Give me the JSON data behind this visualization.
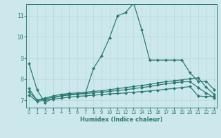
{
  "title": "",
  "xlabel": "Humidex (Indice chaleur)",
  "ylabel": "",
  "bg_color": "#cce8ec",
  "line_color": "#2d7a72",
  "grid_color": "#b8d8dc",
  "x_ticks": [
    0,
    1,
    2,
    3,
    4,
    5,
    6,
    7,
    8,
    9,
    10,
    11,
    12,
    13,
    14,
    15,
    16,
    17,
    18,
    19,
    20,
    21,
    22,
    23
  ],
  "y_ticks": [
    7,
    8,
    9,
    10,
    11
  ],
  "ylim": [
    6.65,
    11.55
  ],
  "xlim": [
    -0.3,
    23.3
  ],
  "series": [
    {
      "x": [
        0,
        1,
        2,
        3,
        4,
        5,
        6,
        7,
        8,
        9,
        10,
        11,
        12,
        13,
        14,
        15,
        16,
        17,
        18,
        19,
        20,
        21,
        22,
        23
      ],
      "y": [
        8.75,
        7.5,
        6.88,
        7.1,
        7.22,
        7.28,
        7.3,
        7.32,
        8.5,
        9.1,
        9.95,
        11.0,
        11.15,
        11.6,
        10.35,
        8.9,
        8.9,
        8.9,
        8.9,
        8.9,
        8.3,
        7.9,
        7.9,
        7.5
      ]
    },
    {
      "x": [
        0,
        1,
        2,
        3,
        4,
        5,
        6,
        7,
        8,
        9,
        10,
        11,
        12,
        13,
        14,
        15,
        16,
        17,
        18,
        19,
        20,
        21,
        22,
        23
      ],
      "y": [
        7.55,
        7.0,
        7.1,
        7.2,
        7.28,
        7.32,
        7.35,
        7.38,
        7.42,
        7.45,
        7.5,
        7.55,
        7.6,
        7.65,
        7.7,
        7.75,
        7.82,
        7.88,
        7.92,
        7.97,
        8.02,
        8.06,
        7.62,
        7.28
      ]
    },
    {
      "x": [
        0,
        1,
        2,
        3,
        4,
        5,
        6,
        7,
        8,
        9,
        10,
        11,
        12,
        13,
        14,
        15,
        16,
        17,
        18,
        19,
        20,
        21,
        22,
        23
      ],
      "y": [
        7.4,
        7.0,
        7.05,
        7.15,
        7.2,
        7.25,
        7.28,
        7.32,
        7.35,
        7.38,
        7.42,
        7.46,
        7.5,
        7.55,
        7.6,
        7.65,
        7.72,
        7.78,
        7.83,
        7.87,
        7.88,
        7.6,
        7.35,
        7.12
      ]
    },
    {
      "x": [
        0,
        1,
        2,
        3,
        4,
        5,
        6,
        7,
        8,
        9,
        10,
        11,
        12,
        13,
        14,
        15,
        16,
        17,
        18,
        19,
        20,
        21,
        22,
        23
      ],
      "y": [
        7.25,
        6.95,
        7.0,
        7.05,
        7.1,
        7.15,
        7.18,
        7.21,
        7.24,
        7.27,
        7.3,
        7.32,
        7.35,
        7.38,
        7.41,
        7.44,
        7.48,
        7.52,
        7.56,
        7.6,
        7.65,
        7.2,
        7.18,
        7.18
      ]
    }
  ],
  "marker": "D",
  "markersize": 2.0,
  "linewidth": 0.9
}
